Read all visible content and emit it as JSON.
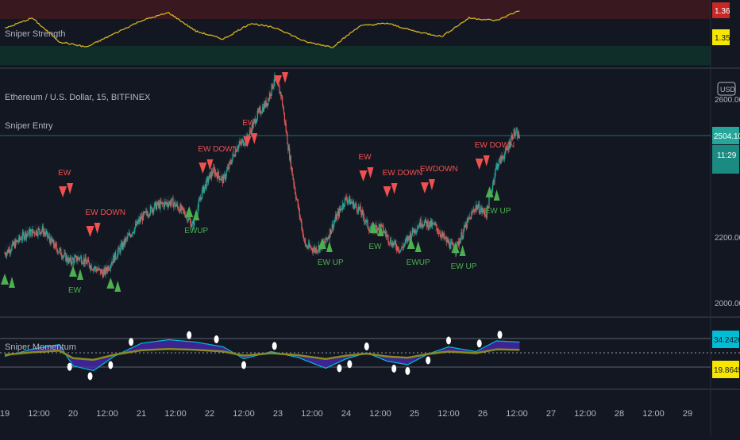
{
  "colors": {
    "background": "#131722",
    "bull_candle": "#26a69a",
    "bear_candle": "#ef5350",
    "buy_signal": "#4caf50",
    "sell_signal": "#f05050",
    "strength_line": "#d4b020",
    "strength_upper_zone": "#4a1a22",
    "strength_lower_zone": "#123430",
    "momentum_blue": "#2962ff",
    "momentum_purple": "#4b2bb8",
    "momentum_cyan": "#00bcd4",
    "momentum_olive": "#8a8a20",
    "price_badge": "#26a69a",
    "upper_badge": "#c62828",
    "lower_badge": "#f7e600"
  },
  "icons": {
    "buy": "triangle-up-icon",
    "sell": "triangle-down-icon",
    "currency_badge": "usd-badge-icon"
  },
  "strength_panel": {
    "title": "Sniper Strength",
    "badge_upper": "1.36",
    "badge_lower": "1.35"
  },
  "price_panel": {
    "symbol_line": "Ethereum / U.S. Dollar, 15, BITFINEX",
    "indicator_title": "Sniper Entry",
    "currency": "USD",
    "axis_labels": [
      "2600.00",
      "2200.00",
      "2000.00"
    ],
    "last_price": "2504.10",
    "countdown": "11:29"
  },
  "momentum_panel": {
    "title": "Sniper Momentum",
    "badge_cyan": "34.2420",
    "badge_yellow": "19.8645"
  },
  "time_axis": {
    "labels": [
      "19",
      "12:00",
      "20",
      "12:00",
      "21",
      "12:00",
      "22",
      "12:00",
      "23",
      "12:00",
      "24",
      "12:00",
      "25",
      "12:00",
      "26",
      "12:00",
      "27",
      "12:00",
      "28",
      "12:00",
      "29"
    ]
  },
  "chart_data": {
    "type": "line",
    "x_unit": "15-minute bars, 19th to 26th",
    "price_series": {
      "name": "Ethereum / U.S. Dollar",
      "anchors_x_day": [
        19.0,
        19.3,
        19.55,
        19.75,
        19.95,
        20.1,
        20.3,
        20.45,
        20.7,
        21.0,
        21.2,
        21.45,
        21.65,
        21.75,
        21.9,
        22.05,
        22.2,
        22.4,
        22.55,
        22.7,
        22.85,
        22.95,
        23.05,
        23.15,
        23.25,
        23.4,
        23.55,
        23.7,
        23.85,
        24.0,
        24.2,
        24.35,
        24.5,
        24.65,
        24.8,
        24.95,
        25.1,
        25.3,
        25.45,
        25.6,
        25.75,
        25.9,
        26.05,
        26.2,
        26.35,
        26.45,
        26.55
      ],
      "anchors_price": [
        2200,
        2250,
        2260,
        2215,
        2180,
        2190,
        2165,
        2150,
        2215,
        2290,
        2320,
        2330,
        2300,
        2270,
        2360,
        2410,
        2385,
        2470,
        2490,
        2550,
        2585,
        2640,
        2600,
        2470,
        2360,
        2220,
        2210,
        2230,
        2290,
        2340,
        2310,
        2260,
        2270,
        2230,
        2210,
        2250,
        2280,
        2270,
        2235,
        2210,
        2270,
        2320,
        2300,
        2420,
        2460,
        2505,
        2495
      ]
    },
    "sell_signals": [
      {
        "x_day": 19.85,
        "label": "EW"
      },
      {
        "x_day": 20.25,
        "label": "EW DOWN"
      },
      {
        "x_day": 21.9,
        "label": "EW DOWN"
      },
      {
        "x_day": 22.55,
        "label": "EW"
      },
      {
        "x_day": 23.0,
        "label": ""
      },
      {
        "x_day": 24.25,
        "label": "EW"
      },
      {
        "x_day": 24.6,
        "label": "EW DOWN"
      },
      {
        "x_day": 25.15,
        "label": "EWDOWN"
      },
      {
        "x_day": 25.95,
        "label": "EW DOWN"
      }
    ],
    "buy_signals": [
      {
        "x_day": 19.0,
        "label": ""
      },
      {
        "x_day": 20.0,
        "label": "EW"
      },
      {
        "x_day": 20.55,
        "label": ""
      },
      {
        "x_day": 21.7,
        "label": "EWUP"
      },
      {
        "x_day": 23.65,
        "label": "EW UP"
      },
      {
        "x_day": 24.4,
        "label": "EW"
      },
      {
        "x_day": 24.95,
        "label": "EWUP"
      },
      {
        "x_day": 25.6,
        "label": "EW UP"
      },
      {
        "x_day": 26.1,
        "label": "EW UP"
      }
    ],
    "strength_line": {
      "anchors_x_day": [
        19.0,
        19.4,
        19.8,
        20.2,
        20.6,
        21.0,
        21.4,
        21.8,
        22.2,
        22.6,
        23.0,
        23.4,
        23.8,
        24.2,
        24.6,
        25.0,
        25.4,
        25.8,
        26.2,
        26.55
      ],
      "anchors_value": [
        1.357,
        1.361,
        1.352,
        1.35,
        1.355,
        1.36,
        1.363,
        1.356,
        1.353,
        1.359,
        1.357,
        1.352,
        1.35,
        1.358,
        1.359,
        1.356,
        1.354,
        1.361,
        1.36,
        1.364
      ],
      "ylim": [
        1.348,
        1.366
      ]
    },
    "momentum": {
      "anchors_x_day": [
        19.0,
        19.4,
        19.8,
        20.0,
        20.3,
        20.6,
        21.0,
        21.4,
        21.8,
        22.2,
        22.5,
        22.9,
        23.3,
        23.7,
        24.0,
        24.3,
        24.6,
        24.9,
        25.2,
        25.5,
        25.9,
        26.2,
        26.55
      ],
      "anchors_value": [
        22,
        28,
        32,
        14,
        10,
        22,
        33,
        36,
        34,
        30,
        20,
        26,
        21,
        12,
        20,
        25,
        18,
        15,
        24,
        30,
        26,
        35,
        34
      ],
      "ylim": [
        5,
        45
      ]
    }
  }
}
